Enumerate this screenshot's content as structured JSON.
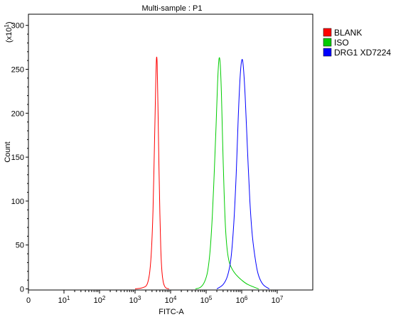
{
  "chart_data": {
    "type": "line",
    "title": "Multi-sample : P1",
    "xlabel": "FITC-A",
    "ylabel": "Count",
    "y_multiplier_label": {
      "base": "(x10",
      "exp": "1",
      "close": ")"
    },
    "x_scale": "log",
    "xlim": [
      0,
      10000000
    ],
    "ylim": [
      0,
      310
    ],
    "x_ticks": [
      {
        "base": "0",
        "exp": "",
        "value": 0
      },
      {
        "base": "10",
        "exp": "1",
        "value": 10
      },
      {
        "base": "10",
        "exp": "2",
        "value": 100
      },
      {
        "base": "10",
        "exp": "3",
        "value": 1000
      },
      {
        "base": "10",
        "exp": "4",
        "value": 10000
      },
      {
        "base": "10",
        "exp": "5",
        "value": 100000
      },
      {
        "base": "10",
        "exp": "6",
        "value": 1000000
      },
      {
        "base": "10",
        "exp": "7",
        "value": 10000000
      }
    ],
    "y_ticks": [
      0,
      50,
      100,
      150,
      200,
      250,
      300
    ],
    "grid": false,
    "legend_position": "right",
    "series": [
      {
        "name": "BLANK",
        "color": "#ff0000",
        "x": [
          1000,
          1500,
          2000,
          2300,
          2600,
          2900,
          3200,
          3500,
          3800,
          4000,
          4200,
          4400,
          4700,
          5000,
          5300,
          5700,
          6200,
          6800,
          7500,
          9000
        ],
        "y": [
          0,
          1,
          3,
          8,
          20,
          45,
          90,
          160,
          230,
          262,
          255,
          210,
          140,
          85,
          45,
          20,
          8,
          3,
          1,
          0
        ]
      },
      {
        "name": "ISO",
        "color": "#00cc00",
        "x": [
          50000,
          70000,
          90000,
          110000,
          130000,
          150000,
          170000,
          190000,
          210000,
          230000,
          250000,
          270000,
          290000,
          320000,
          350000,
          390000,
          450000,
          550000,
          700000,
          1000000,
          1500000,
          3000000
        ],
        "y": [
          0,
          2,
          8,
          20,
          45,
          85,
          135,
          185,
          235,
          262,
          255,
          220,
          170,
          110,
          70,
          45,
          30,
          22,
          16,
          10,
          5,
          0
        ]
      },
      {
        "name": "DRG1 XD7224",
        "color": "#0000ff",
        "x": [
          200000,
          300000,
          400000,
          500000,
          600000,
          700000,
          800000,
          900000,
          1000000,
          1100000,
          1250000,
          1450000,
          1700000,
          2000000,
          2500000,
          3000000,
          4000000,
          6000000
        ],
        "y": [
          0,
          5,
          15,
          35,
          75,
          130,
          195,
          240,
          260,
          255,
          220,
          160,
          100,
          60,
          30,
          15,
          5,
          0
        ]
      }
    ]
  }
}
